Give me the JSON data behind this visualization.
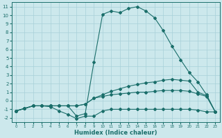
{
  "xlabel": "Humidex (Indice chaleur)",
  "bg_color": "#cce8ec",
  "grid_color": "#a8d0d8",
  "line_color": "#1a6e6a",
  "xlim": [
    -0.5,
    23.5
  ],
  "ylim": [
    -2.5,
    11.5
  ],
  "xticks": [
    0,
    1,
    2,
    3,
    4,
    5,
    6,
    7,
    8,
    9,
    10,
    11,
    12,
    13,
    14,
    15,
    16,
    17,
    18,
    19,
    20,
    21,
    22,
    23
  ],
  "yticks": [
    -2,
    -1,
    0,
    1,
    2,
    3,
    4,
    5,
    6,
    7,
    8,
    9,
    10,
    11
  ],
  "lines": [
    {
      "x": [
        0,
        1,
        2,
        3,
        4,
        5,
        6,
        7,
        8,
        9,
        10,
        11,
        12,
        13,
        14,
        15,
        16,
        17,
        18,
        19,
        20,
        21,
        22,
        23
      ],
      "y": [
        -1.2,
        -0.9,
        -0.6,
        -0.6,
        -0.6,
        -0.6,
        -0.6,
        -1.8,
        -1.5,
        4.5,
        10.1,
        10.5,
        10.3,
        10.8,
        11.0,
        10.5,
        9.7,
        8.2,
        6.4,
        4.8,
        3.3,
        2.2,
        0.7,
        -1.3
      ]
    },
    {
      "x": [
        0,
        1,
        2,
        3,
        4,
        5,
        6,
        7,
        8,
        9,
        10,
        11,
        12,
        13,
        14,
        15,
        16,
        17,
        18,
        19,
        20,
        21,
        22,
        23
      ],
      "y": [
        -1.2,
        -0.9,
        -0.6,
        -0.6,
        -0.6,
        -0.6,
        -0.6,
        -0.6,
        -0.4,
        0.3,
        0.7,
        1.1,
        1.4,
        1.7,
        1.9,
        2.1,
        2.2,
        2.4,
        2.5,
        2.4,
        2.3,
        1.0,
        0.6,
        -1.3
      ]
    },
    {
      "x": [
        0,
        1,
        2,
        3,
        4,
        5,
        6,
        7,
        8,
        9,
        10,
        11,
        12,
        13,
        14,
        15,
        16,
        17,
        18,
        19,
        20,
        21,
        22,
        23
      ],
      "y": [
        -1.2,
        -0.9,
        -0.6,
        -0.6,
        -0.6,
        -0.6,
        -0.6,
        -0.6,
        -0.4,
        0.3,
        0.5,
        0.7,
        0.8,
        0.9,
        1.0,
        1.0,
        1.1,
        1.2,
        1.2,
        1.2,
        1.1,
        0.8,
        0.5,
        -1.3
      ]
    },
    {
      "x": [
        0,
        1,
        2,
        3,
        4,
        5,
        6,
        7,
        8,
        9,
        10,
        11,
        12,
        13,
        14,
        15,
        16,
        17,
        18,
        19,
        20,
        21,
        22,
        23
      ],
      "y": [
        -1.2,
        -0.9,
        -0.6,
        -0.6,
        -0.7,
        -1.2,
        -1.6,
        -2.1,
        -1.8,
        -1.8,
        -1.2,
        -1.0,
        -1.0,
        -1.0,
        -1.0,
        -1.0,
        -1.0,
        -1.0,
        -1.0,
        -1.0,
        -1.0,
        -1.1,
        -1.3,
        -1.3
      ]
    }
  ]
}
